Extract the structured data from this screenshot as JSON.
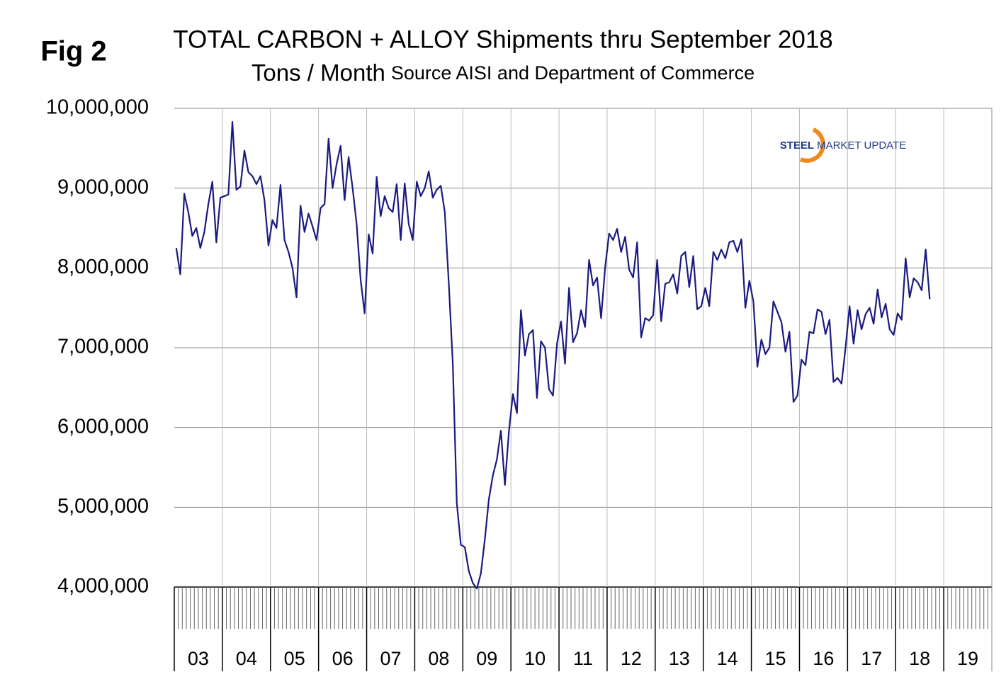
{
  "fig_label": "Fig 2",
  "chart_data": {
    "type": "line",
    "title": "TOTAL CARBON + ALLOY Shipments thru September 2018",
    "subtitle": "Tons / Month",
    "source": "Source AISI and Department of Commerce",
    "logo": {
      "bold": "STEEL",
      "rest": "MARKET UPDATE"
    },
    "color": "#1a1a80",
    "grid": true,
    "categories": [
      "03",
      "04",
      "05",
      "06",
      "07",
      "08",
      "09",
      "10",
      "11",
      "12",
      "13",
      "14",
      "15",
      "16",
      "17",
      "18",
      "19"
    ],
    "values": [
      [
        8250000,
        7920000,
        8930000,
        8700000,
        8400000,
        8500000,
        8250000,
        8450000,
        8800000,
        9080000,
        8320000,
        8880000
      ],
      [
        8900000,
        8920000,
        9830000,
        8980000,
        9020000,
        9470000,
        9200000,
        9150000,
        9050000,
        9150000,
        8850000,
        8280000
      ],
      [
        8600000,
        8500000,
        9040000,
        8350000,
        8200000,
        8000000,
        7630000,
        8780000,
        8450000,
        8680000,
        8520000,
        8350000
      ],
      [
        8750000,
        8800000,
        9620000,
        9000000,
        9300000,
        9530000,
        8850000,
        9390000,
        9000000,
        8550000,
        7850000,
        7430000
      ],
      [
        8420000,
        8180000,
        9140000,
        8650000,
        8900000,
        8750000,
        8700000,
        9050000,
        8350000,
        9060000,
        8550000,
        8350000
      ],
      [
        9080000,
        8900000,
        9000000,
        9210000,
        8880000,
        8980000,
        9030000,
        8700000,
        7800000,
        6800000,
        5050000,
        4530000
      ],
      [
        4500000,
        4200000,
        4050000,
        3980000,
        4170000,
        4600000,
        5100000,
        5400000,
        5600000,
        5960000,
        5280000,
        5950000
      ],
      [
        6420000,
        6180000,
        7470000,
        6900000,
        7170000,
        7220000,
        6370000,
        7080000,
        7000000,
        6480000,
        6400000,
        7050000
      ],
      [
        7330000,
        6800000,
        7750000,
        7070000,
        7180000,
        7470000,
        7260000,
        8100000,
        7780000,
        7880000,
        7370000,
        8000000
      ],
      [
        8430000,
        8350000,
        8490000,
        8200000,
        8390000,
        7980000,
        7880000,
        8320000,
        7130000,
        7370000,
        7340000,
        7410000
      ],
      [
        8100000,
        7330000,
        7800000,
        7820000,
        7920000,
        7680000,
        8150000,
        8200000,
        7760000,
        8150000,
        7480000,
        7520000
      ],
      [
        7750000,
        7520000,
        8200000,
        8100000,
        8230000,
        8120000,
        8320000,
        8340000,
        8200000,
        8360000,
        7500000,
        7840000
      ],
      [
        7580000,
        6760000,
        7100000,
        6920000,
        7000000,
        7580000,
        7450000,
        7320000,
        6950000,
        7200000,
        6320000,
        6400000
      ],
      [
        6850000,
        6780000,
        7200000,
        7180000,
        7480000,
        7450000,
        7170000,
        7350000,
        6570000,
        6620000,
        6550000,
        7000000
      ],
      [
        7520000,
        7050000,
        7470000,
        7230000,
        7420000,
        7500000,
        7300000,
        7730000,
        7380000,
        7550000,
        7230000,
        7160000
      ],
      [
        7430000,
        7350000,
        8120000,
        7630000,
        7870000,
        7820000,
        7720000,
        8230000,
        7610000
      ],
      []
    ],
    "ylim": [
      4000000,
      10000000
    ],
    "yticks": [
      {
        "value": 4000000,
        "label": "4,000,000"
      },
      {
        "value": 5000000,
        "label": "5,000,000"
      },
      {
        "value": 6000000,
        "label": "6,000,000"
      },
      {
        "value": 7000000,
        "label": "7,000,000"
      },
      {
        "value": 8000000,
        "label": "8,000,000"
      },
      {
        "value": 9000000,
        "label": "9,000,000"
      },
      {
        "value": 10000000,
        "label": "10,000,000"
      }
    ]
  }
}
